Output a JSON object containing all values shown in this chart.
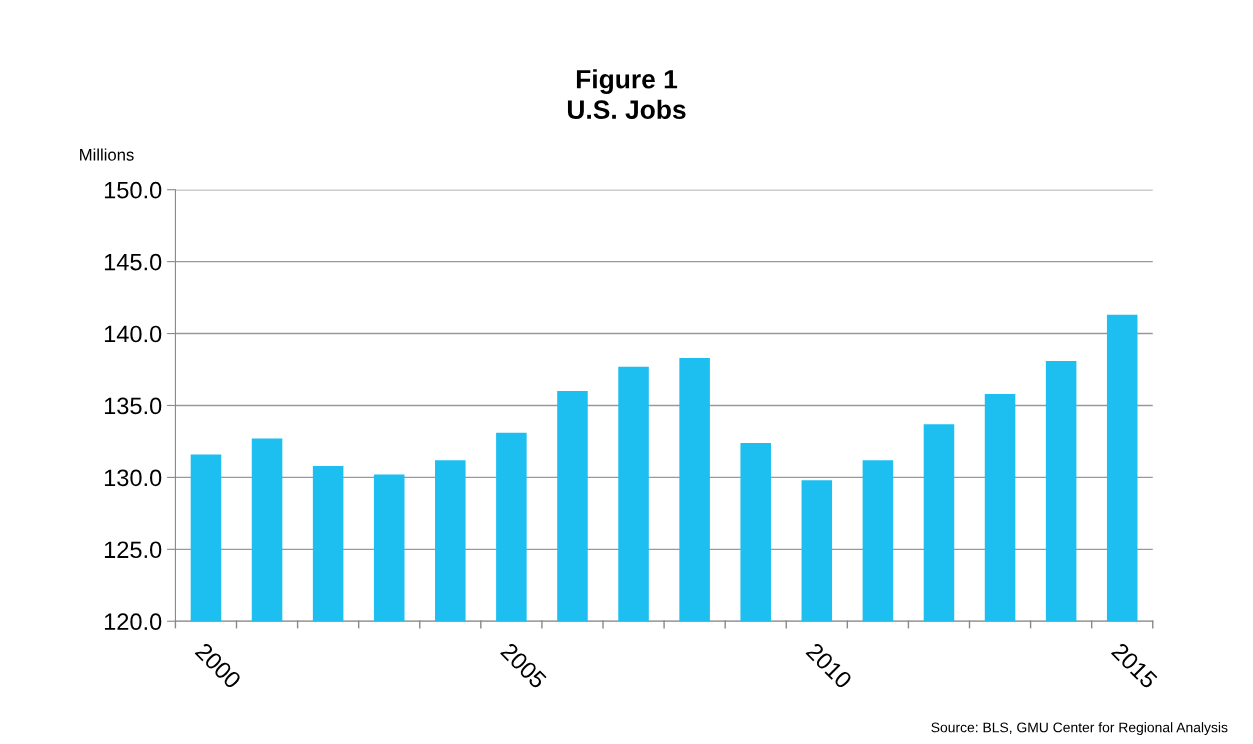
{
  "chart_data": {
    "type": "bar",
    "title": "Figure 1\nU.S. Jobs",
    "ylabel": "Millions",
    "categories": [
      "2000",
      null,
      null,
      null,
      null,
      "2005",
      null,
      null,
      null,
      null,
      "2010",
      null,
      null,
      null,
      null,
      "2015"
    ],
    "values": [
      131.6,
      132.7,
      130.8,
      130.2,
      131.2,
      133.1,
      136.0,
      137.7,
      138.3,
      132.4,
      129.8,
      131.2,
      133.7,
      135.8,
      138.1,
      141.3
    ],
    "color": "#1cbff0",
    "ylim": [
      120,
      150
    ],
    "yticks": [
      {
        "value": 120,
        "label": "120.0"
      },
      {
        "value": 125,
        "label": "125.0"
      },
      {
        "value": 130,
        "label": "130.0"
      },
      {
        "value": 135,
        "label": "135.0"
      },
      {
        "value": 140,
        "label": "140.0"
      },
      {
        "value": 145,
        "label": "145.0"
      },
      {
        "value": 150,
        "label": "150.0"
      }
    ],
    "grid": "y",
    "annotations": [
      "Source: BLS, GMU Center for Regional Analysis"
    ]
  }
}
